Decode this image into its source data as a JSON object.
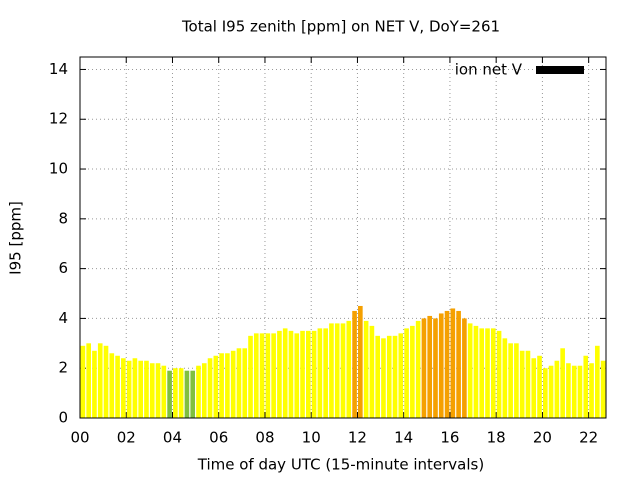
{
  "chart_data": {
    "type": "bar",
    "title": "Total I95 zenith [ppm] on NET V, DoY=261",
    "xlabel": "Time of day UTC (15-minute intervals)",
    "ylabel": "I95 [ppm]",
    "x": [
      0.125,
      0.375,
      0.625,
      0.875,
      1.125,
      1.375,
      1.625,
      1.875,
      2.125,
      2.375,
      2.625,
      2.875,
      3.125,
      3.375,
      3.625,
      3.875,
      4.125,
      4.375,
      4.625,
      4.875,
      5.125,
      5.375,
      5.625,
      5.875,
      6.125,
      6.375,
      6.625,
      6.875,
      7.125,
      7.375,
      7.625,
      7.875,
      8.125,
      8.375,
      8.625,
      8.875,
      9.125,
      9.375,
      9.625,
      9.875,
      10.125,
      10.375,
      10.625,
      10.875,
      11.125,
      11.375,
      11.625,
      11.875,
      12.125,
      12.375,
      12.625,
      12.875,
      13.125,
      13.375,
      13.625,
      13.875,
      14.125,
      14.375,
      14.625,
      14.875,
      15.125,
      15.375,
      15.625,
      15.875,
      16.125,
      16.375,
      16.625,
      16.875,
      17.125,
      17.375,
      17.625,
      17.875,
      18.125,
      18.375,
      18.625,
      18.875,
      19.125,
      19.375,
      19.625,
      19.875,
      20.125,
      20.375,
      20.625,
      20.875,
      21.125,
      21.375,
      21.625,
      21.875,
      22.125,
      22.375,
      22.625
    ],
    "series": [
      {
        "name": "ion net V",
        "color": "#000000",
        "values": [
          2.9,
          3.0,
          2.7,
          3.0,
          2.9,
          2.6,
          2.5,
          2.4,
          2.3,
          2.4,
          2.3,
          2.3,
          2.2,
          2.2,
          2.1,
          1.9,
          2.0,
          2.0,
          1.9,
          1.9,
          2.1,
          2.2,
          2.4,
          2.5,
          2.6,
          2.6,
          2.7,
          2.8,
          2.8,
          3.3,
          3.4,
          3.4,
          3.4,
          3.4,
          3.5,
          3.6,
          3.5,
          3.4,
          3.5,
          3.5,
          3.5,
          3.6,
          3.6,
          3.8,
          3.8,
          3.8,
          3.9,
          4.3,
          4.5,
          3.9,
          3.7,
          3.3,
          3.2,
          3.3,
          3.3,
          3.4,
          3.6,
          3.7,
          3.9,
          4.0,
          4.1,
          4.0,
          4.2,
          4.3,
          4.4,
          4.3,
          4.0,
          3.8,
          3.7,
          3.6,
          3.6,
          3.6,
          3.5,
          3.2,
          3.0,
          3.0,
          2.7,
          2.7,
          2.4,
          2.5,
          2.0,
          2.1,
          2.3,
          2.8,
          2.2,
          2.1,
          2.1,
          2.5,
          2.2,
          2.9,
          2.3
        ],
        "colors": [
          "#ffff00",
          "#ffff00",
          "#ffff00",
          "#ffff00",
          "#ffff00",
          "#ffff00",
          "#ffff00",
          "#ffff00",
          "#ffff00",
          "#ffff00",
          "#ffff00",
          "#ffff00",
          "#ffff00",
          "#ffff00",
          "#ffff00",
          "#7fbf3f",
          "#ffff00",
          "#ffff00",
          "#7fbf3f",
          "#7fbf3f",
          "#ffff00",
          "#ffff00",
          "#ffff00",
          "#ffff00",
          "#ffff00",
          "#ffff00",
          "#ffff00",
          "#ffff00",
          "#ffff00",
          "#ffff00",
          "#ffff00",
          "#ffff00",
          "#ffff00",
          "#ffff00",
          "#ffff00",
          "#ffff00",
          "#ffff00",
          "#ffff00",
          "#ffff00",
          "#ffff00",
          "#ffff00",
          "#ffff00",
          "#ffff00",
          "#ffff00",
          "#ffff00",
          "#ffff00",
          "#ffff00",
          "#f5a000",
          "#f5a000",
          "#ffff00",
          "#ffff00",
          "#ffff00",
          "#ffff00",
          "#ffff00",
          "#ffff00",
          "#ffff00",
          "#ffff00",
          "#ffff00",
          "#ffff00",
          "#f5a000",
          "#f5a000",
          "#f5a000",
          "#f5a000",
          "#f5a000",
          "#f5a000",
          "#f5a000",
          "#f5a000",
          "#ffff00",
          "#ffff00",
          "#ffff00",
          "#ffff00",
          "#ffff00",
          "#ffff00",
          "#ffff00",
          "#ffff00",
          "#ffff00",
          "#ffff00",
          "#ffff00",
          "#ffff00",
          "#ffff00",
          "#ffff00",
          "#ffff00",
          "#ffff00",
          "#ffff00",
          "#ffff00",
          "#ffff00",
          "#ffff00",
          "#ffff00",
          "#ffff00",
          "#ffff00",
          "#ffff00"
        ]
      }
    ],
    "xlim": [
      0,
      22.75
    ],
    "xticks": [
      {
        "value": 0,
        "label": "00"
      },
      {
        "value": 2,
        "label": "02"
      },
      {
        "value": 4,
        "label": "04"
      },
      {
        "value": 6,
        "label": "06"
      },
      {
        "value": 8,
        "label": "08"
      },
      {
        "value": 10,
        "label": "10"
      },
      {
        "value": 12,
        "label": "12"
      },
      {
        "value": 14,
        "label": "14"
      },
      {
        "value": 16,
        "label": "16"
      },
      {
        "value": 18,
        "label": "18"
      },
      {
        "value": 20,
        "label": "20"
      },
      {
        "value": 22,
        "label": "22"
      }
    ],
    "ylim": [
      0,
      14.5
    ],
    "yticks": [
      0,
      2,
      4,
      6,
      8,
      10,
      12,
      14
    ],
    "grid": true,
    "legend": "top-right"
  }
}
